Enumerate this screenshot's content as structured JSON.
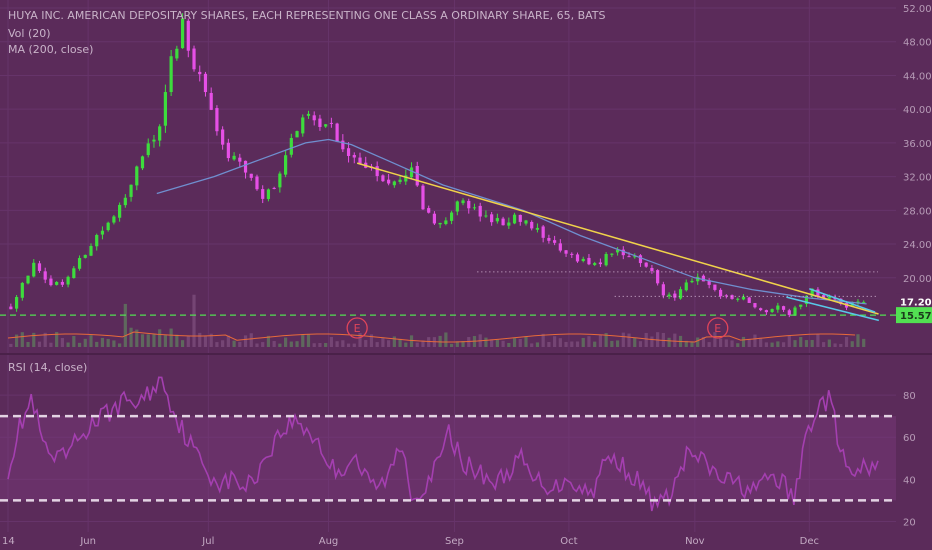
{
  "header": {
    "title": "HUYA INC. AMERICAN DEPOSITARY SHARES, EACH REPRESENTING ONE CLASS A ORDINARY SHARE, 65, BATS",
    "vol_label": "Vol (20)",
    "ma_label": "MA (200, close)",
    "rsi_label": "RSI (14, close)"
  },
  "colors": {
    "background": "#5b2b5a",
    "up": "#3ddc3d",
    "down": "#e64fe6",
    "ma": "#6f8fcf",
    "trendline": "#f0d24a",
    "support": "#52e052",
    "rsi": "#a43fb0",
    "channel": "#58c8e8",
    "earnings": "#e0455a"
  },
  "chart_data": [
    {
      "type": "candlestick",
      "title": "HUYA INC. AMERICAN DEPOSITARY SHARES, EACH REPRESENTING ONE CLASS A ORDINARY SHARE, 65, BATS",
      "x_tick_labels": [
        "14",
        "Jun",
        "Jul",
        "Aug",
        "Sep",
        "Oct",
        "Nov",
        "Dec"
      ],
      "y_tick_labels": [
        "20.00",
        "24.00",
        "28.00",
        "32.00",
        "36.00",
        "40.00",
        "44.00",
        "48.00",
        "52.00"
      ],
      "ylim": [
        12.5,
        52
      ],
      "price_labels": {
        "current": "17.20",
        "support": "15.57"
      },
      "earnings_marker": "E",
      "close_path": [
        [
          0,
          16.5
        ],
        [
          2,
          19.5
        ],
        [
          4,
          21.5
        ],
        [
          6,
          19.5
        ],
        [
          9,
          19.3
        ],
        [
          12,
          22
        ],
        [
          15,
          25
        ],
        [
          18,
          27
        ],
        [
          20,
          30
        ],
        [
          22,
          33
        ],
        [
          24,
          36
        ],
        [
          26,
          38
        ],
        [
          28,
          46
        ],
        [
          30,
          50
        ],
        [
          32,
          45
        ],
        [
          34,
          42
        ],
        [
          36,
          37
        ],
        [
          38,
          34.5
        ],
        [
          40,
          33.5
        ],
        [
          42,
          31.5
        ],
        [
          44,
          29.5
        ],
        [
          46,
          31
        ],
        [
          48,
          34
        ],
        [
          50,
          38
        ],
        [
          52,
          39.5
        ],
        [
          54,
          38.5
        ],
        [
          56,
          38
        ],
        [
          58,
          35
        ],
        [
          60,
          34
        ],
        [
          62,
          33.5
        ],
        [
          64,
          32
        ],
        [
          66,
          31
        ],
        [
          68,
          31.5
        ],
        [
          70,
          33
        ],
        [
          72,
          28
        ],
        [
          74,
          26.5
        ],
        [
          76,
          27
        ],
        [
          78,
          29
        ],
        [
          80,
          28.5
        ],
        [
          82,
          27.5
        ],
        [
          84,
          27
        ],
        [
          86,
          26.5
        ],
        [
          88,
          27.5
        ],
        [
          90,
          26.5
        ],
        [
          92,
          26
        ],
        [
          94,
          24
        ],
        [
          96,
          23.5
        ],
        [
          98,
          22.5
        ],
        [
          100,
          22
        ],
        [
          102,
          21.5
        ],
        [
          104,
          22.5
        ],
        [
          106,
          23
        ],
        [
          108,
          22.5
        ],
        [
          110,
          22
        ],
        [
          112,
          20.5
        ],
        [
          114,
          18
        ],
        [
          116,
          17.5
        ],
        [
          118,
          19.5
        ],
        [
          120,
          20
        ],
        [
          122,
          19
        ],
        [
          124,
          18
        ],
        [
          126,
          17.5
        ],
        [
          128,
          17.5
        ],
        [
          130,
          16.5
        ],
        [
          132,
          16
        ],
        [
          134,
          16.5
        ],
        [
          136,
          15.6
        ],
        [
          138,
          17
        ],
        [
          140,
          18.5
        ],
        [
          142,
          17.8
        ],
        [
          144,
          17.2
        ],
        [
          146,
          16.5
        ],
        [
          148,
          17.2
        ]
      ],
      "ma_path": [
        [
          26,
          30
        ],
        [
          36,
          32
        ],
        [
          44,
          34
        ],
        [
          52,
          36
        ],
        [
          56,
          36.4
        ],
        [
          60,
          35.8
        ],
        [
          66,
          34
        ],
        [
          76,
          31
        ],
        [
          90,
          28
        ],
        [
          100,
          25
        ],
        [
          110,
          22.5
        ],
        [
          120,
          20
        ],
        [
          130,
          18.6
        ],
        [
          140,
          17.6
        ],
        [
          150,
          16.9
        ]
      ],
      "trendline": [
        [
          61,
          33.6
        ],
        [
          150,
          15.7
        ]
      ],
      "support_level": 15.57,
      "resistance_level": 20.7,
      "minor_level": 17.8,
      "channel_upper": [
        [
          140,
          18.7
        ],
        [
          148,
          16.4
        ]
      ],
      "channel_lower": [
        [
          136,
          17.7
        ],
        [
          149,
          15.3
        ]
      ]
    },
    {
      "type": "line",
      "title": "RSI (14, close)",
      "y_tick_labels": [
        "20",
        "40",
        "60",
        "80"
      ],
      "ylim": [
        15,
        90
      ],
      "overbought": 70,
      "oversold": 30,
      "series": [
        {
          "values": [
            45,
            65,
            78,
            55,
            48,
            52,
            60,
            66,
            70,
            74,
            78,
            76,
            82,
            88,
            70,
            60,
            50,
            42,
            38,
            40,
            36,
            44,
            55,
            63,
            68,
            64,
            58,
            46,
            44,
            52,
            40,
            36,
            42,
            58,
            30,
            38,
            46,
            62,
            50,
            44,
            42,
            38,
            44,
            50,
            40,
            38,
            36,
            42,
            35,
            34,
            48,
            50,
            44,
            38,
            30,
            28,
            38,
            52,
            50,
            44,
            40,
            38,
            36,
            35,
            42,
            38,
            30,
            62,
            75,
            78,
            50,
            40,
            46,
            44
          ]
        }
      ]
    }
  ]
}
